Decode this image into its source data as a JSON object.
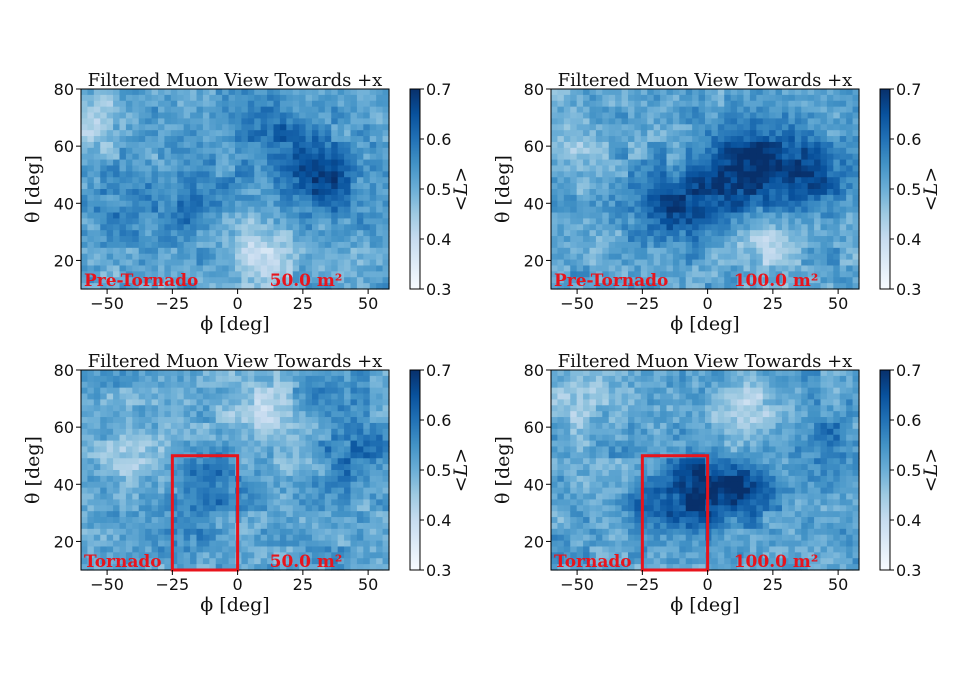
{
  "chart_data": [
    {
      "type": "heatmap",
      "title": "Filtered Muon View Towards +x",
      "xlabel": "ϕ [deg]",
      "ylabel": "θ [deg]",
      "xlim": [
        -60,
        58
      ],
      "ylim": [
        10,
        80
      ],
      "xticks": [
        -50,
        -25,
        0,
        25,
        50
      ],
      "yticks": [
        20,
        40,
        60,
        80
      ],
      "colorbar": {
        "label": "<L>",
        "min": 0.3,
        "max": 0.7,
        "ticks": [
          0.3,
          0.4,
          0.5,
          0.6,
          0.7
        ],
        "colormap": "Blues"
      },
      "label_left": "Pre-Tornado",
      "label_right": "50.0 m²",
      "annotation_color": "#e8141c",
      "highlight_box": null,
      "field_features": [
        {
          "phi": 33,
          "theta": 48,
          "value": 0.66,
          "radius": 12
        },
        {
          "phi": 15,
          "theta": 62,
          "value": 0.6,
          "radius": 16
        },
        {
          "phi": -18,
          "theta": 40,
          "value": 0.58,
          "radius": 14
        },
        {
          "phi": -45,
          "theta": 40,
          "value": 0.57,
          "radius": 12
        },
        {
          "phi": 10,
          "theta": 22,
          "value": 0.4,
          "radius": 12
        },
        {
          "phi": -55,
          "theta": 68,
          "value": 0.44,
          "radius": 10
        }
      ]
    },
    {
      "type": "heatmap",
      "title": "Filtered Muon View Towards +x",
      "xlabel": "ϕ [deg]",
      "ylabel": "θ [deg]",
      "xlim": [
        -60,
        58
      ],
      "ylim": [
        10,
        80
      ],
      "xticks": [
        -50,
        -25,
        0,
        25,
        50
      ],
      "yticks": [
        20,
        40,
        60,
        80
      ],
      "colorbar": {
        "label": "<L>",
        "min": 0.3,
        "max": 0.7,
        "ticks": [
          0.3,
          0.4,
          0.5,
          0.6,
          0.7
        ],
        "colormap": "Blues"
      },
      "label_left": "Pre-Tornado",
      "label_right": "100.0 m²",
      "annotation_color": "#e8141c",
      "highlight_box": null,
      "field_features": [
        {
          "phi": 20,
          "theta": 55,
          "value": 0.68,
          "radius": 14
        },
        {
          "phi": 40,
          "theta": 50,
          "value": 0.66,
          "radius": 12
        },
        {
          "phi": -15,
          "theta": 38,
          "value": 0.64,
          "radius": 13
        },
        {
          "phi": 5,
          "theta": 45,
          "value": 0.63,
          "radius": 14
        },
        {
          "phi": -52,
          "theta": 62,
          "value": 0.45,
          "radius": 10
        },
        {
          "phi": 22,
          "theta": 25,
          "value": 0.42,
          "radius": 10
        }
      ]
    },
    {
      "type": "heatmap",
      "title": "Filtered Muon View Towards +x",
      "xlabel": "ϕ [deg]",
      "ylabel": "θ [deg]",
      "xlim": [
        -60,
        58
      ],
      "ylim": [
        10,
        80
      ],
      "xticks": [
        -50,
        -25,
        0,
        25,
        50
      ],
      "yticks": [
        20,
        40,
        60,
        80
      ],
      "colorbar": {
        "label": "<L>",
        "min": 0.3,
        "max": 0.7,
        "ticks": [
          0.3,
          0.4,
          0.5,
          0.6,
          0.7
        ],
        "colormap": "Blues"
      },
      "label_left": "Tornado",
      "label_right": "50.0 m²",
      "annotation_color": "#e8141c",
      "highlight_box": {
        "phi": [
          -25,
          0
        ],
        "theta": [
          10,
          50
        ]
      },
      "field_features": [
        {
          "phi": -10,
          "theta": 40,
          "value": 0.6,
          "radius": 10
        },
        {
          "phi": 45,
          "theta": 50,
          "value": 0.6,
          "radius": 12
        },
        {
          "phi": -20,
          "theta": 25,
          "value": 0.58,
          "radius": 10
        },
        {
          "phi": 10,
          "theta": 65,
          "value": 0.42,
          "radius": 14
        },
        {
          "phi": -40,
          "theta": 52,
          "value": 0.44,
          "radius": 12
        },
        {
          "phi": 30,
          "theta": 75,
          "value": 0.58,
          "radius": 10
        }
      ]
    },
    {
      "type": "heatmap",
      "title": "Filtered Muon View Towards +x",
      "xlabel": "ϕ [deg]",
      "ylabel": "θ [deg]",
      "xlim": [
        -60,
        58
      ],
      "ylim": [
        10,
        80
      ],
      "xticks": [
        -50,
        -25,
        0,
        25,
        50
      ],
      "yticks": [
        20,
        40,
        60,
        80
      ],
      "colorbar": {
        "label": "<L>",
        "min": 0.3,
        "max": 0.7,
        "ticks": [
          0.3,
          0.4,
          0.5,
          0.6,
          0.7
        ],
        "colormap": "Blues"
      },
      "label_left": "Tornado",
      "label_right": "100.0 m²",
      "annotation_color": "#e8141c",
      "highlight_box": {
        "phi": [
          -25,
          0
        ],
        "theta": [
          10,
          50
        ]
      },
      "field_features": [
        {
          "phi": -2,
          "theta": 38,
          "value": 0.7,
          "radius": 12
        },
        {
          "phi": 15,
          "theta": 38,
          "value": 0.66,
          "radius": 10
        },
        {
          "phi": -20,
          "theta": 32,
          "value": 0.62,
          "radius": 10
        },
        {
          "phi": 45,
          "theta": 55,
          "value": 0.58,
          "radius": 12
        },
        {
          "phi": 15,
          "theta": 65,
          "value": 0.42,
          "radius": 12
        },
        {
          "phi": -50,
          "theta": 70,
          "value": 0.44,
          "radius": 10
        }
      ]
    }
  ]
}
